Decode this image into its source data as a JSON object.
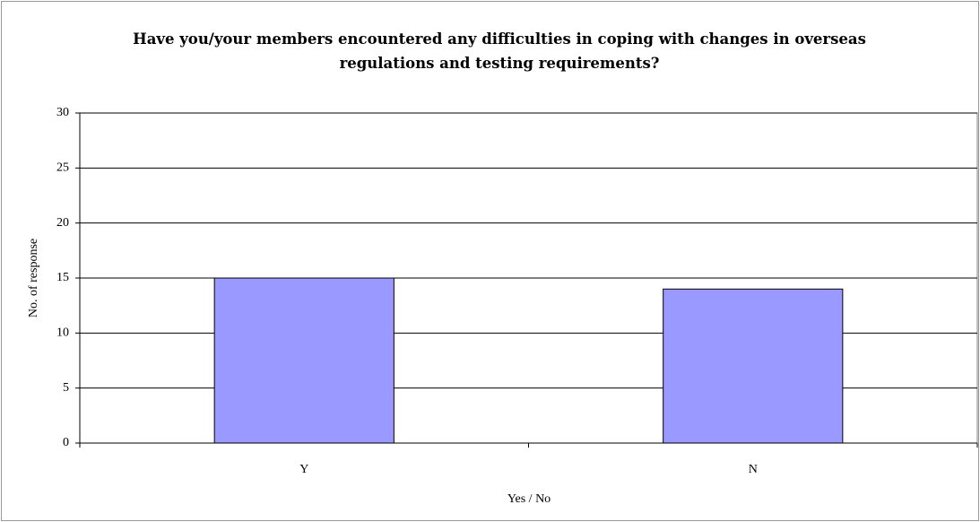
{
  "chart_data": {
    "type": "bar",
    "title": "Have you/your members encountered any difficulties in coping with changes in overseas regulations and testing requirements?",
    "x_label": "Yes / No",
    "y_label": "No. of response",
    "categories": [
      "Y",
      "N"
    ],
    "values": [
      15,
      14
    ],
    "color": "#9999ff",
    "ylim": [
      0,
      30
    ],
    "yticks": [
      0,
      5,
      10,
      15,
      20,
      25,
      30
    ],
    "grid": true
  }
}
